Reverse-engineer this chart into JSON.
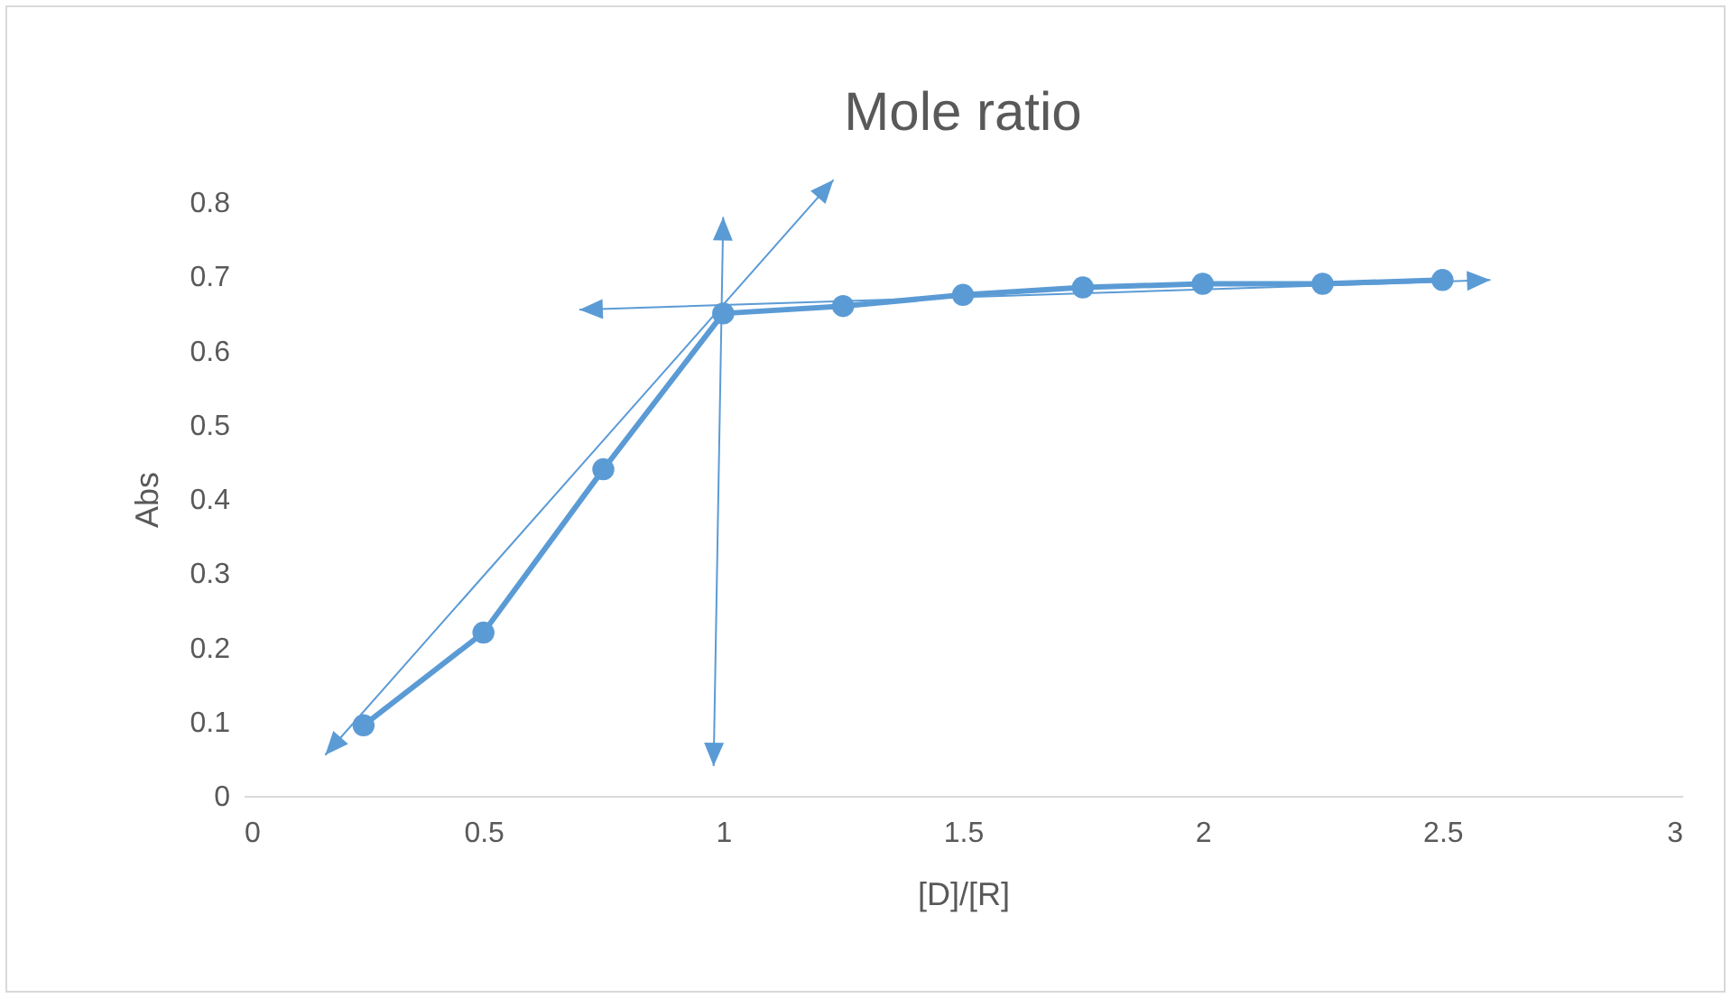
{
  "chart_data": {
    "type": "line",
    "title": "Mole ratio",
    "xlabel": "[D]/[R]",
    "ylabel": "Abs",
    "xlim": [
      0,
      3
    ],
    "xticks": [
      0,
      0.5,
      1,
      1.5,
      2,
      2.5,
      3
    ],
    "ylim": [
      0,
      0.8
    ],
    "yticks": [
      0,
      0.1,
      0.2,
      0.3,
      0.4,
      0.5,
      0.6,
      0.7,
      0.8
    ],
    "grid": false,
    "legend": false,
    "marker": "circle",
    "line_style": "solid",
    "series": [
      {
        "color": "#5b9bd5",
        "x": [
          0.25,
          0.5,
          0.75,
          1,
          1.25,
          1.5,
          1.75,
          2,
          2.25,
          2.5
        ],
        "values": [
          0.095,
          0.22,
          0.44,
          0.65,
          0.66,
          0.675,
          0.685,
          0.69,
          0.69,
          0.695
        ]
      }
    ]
  }
}
